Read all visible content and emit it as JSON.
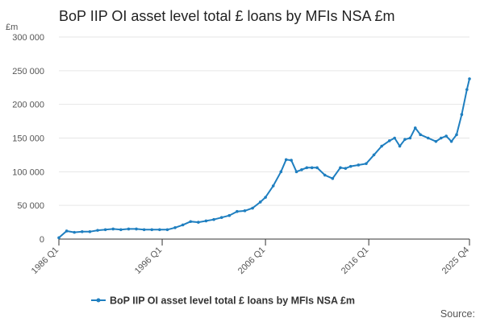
{
  "colors": {
    "series": "#1f7fc0",
    "grid": "#e6e6e6",
    "axis": "#333333"
  },
  "chart_data": {
    "type": "line",
    "title": "BoP IIP OI asset level total £ loans by MFIs NSA £m",
    "unit_label": "£m",
    "ylim": [
      0,
      300000
    ],
    "yticks": [
      {
        "value": 0,
        "label": "0"
      },
      {
        "value": 50000,
        "label": "50 000"
      },
      {
        "value": 100000,
        "label": "100 000"
      },
      {
        "value": 150000,
        "label": "150 000"
      },
      {
        "value": 200000,
        "label": "200 000"
      },
      {
        "value": 250000,
        "label": "250 000"
      },
      {
        "value": 300000,
        "label": "300 000"
      }
    ],
    "xticks": [
      {
        "value": "1986 Q1",
        "label": "1986 Q1"
      },
      {
        "value": "1996 Q1",
        "label": "1996 Q1"
      },
      {
        "value": "2006 Q1",
        "label": "2006 Q1"
      },
      {
        "value": "2016 Q1",
        "label": "2016 Q1"
      },
      {
        "value": "2025 Q4",
        "label": "2025 Q4"
      }
    ],
    "grid": true,
    "legend_position": "bottom",
    "series": [
      {
        "name": "BoP IIP OI asset level total £ loans by MFIs NSA £m",
        "x": [
          "1986 Q1",
          "1986 Q4",
          "1987 Q3",
          "1988 Q2",
          "1989 Q1",
          "1989 Q4",
          "1990 Q3",
          "1991 Q2",
          "1992 Q1",
          "1992 Q4",
          "1993 Q3",
          "1994 Q2",
          "1995 Q1",
          "1995 Q4",
          "1996 Q3",
          "1997 Q2",
          "1998 Q1",
          "1998 Q4",
          "1999 Q3",
          "2000 Q2",
          "2001 Q1",
          "2001 Q4",
          "2002 Q3",
          "2003 Q2",
          "2004 Q1",
          "2004 Q4",
          "2005 Q3",
          "2006 Q1",
          "2006 Q4",
          "2007 Q3",
          "2008 Q1",
          "2008 Q3",
          "2009 Q1",
          "2009 Q3",
          "2010 Q1",
          "2010 Q3",
          "2011 Q1",
          "2011 Q4",
          "2012 Q3",
          "2013 Q2",
          "2013 Q4",
          "2014 Q2",
          "2015 Q1",
          "2015 Q4",
          "2016 Q3",
          "2017 Q2",
          "2018 Q1",
          "2018 Q3",
          "2019 Q1",
          "2019 Q3",
          "2020 Q1",
          "2020 Q3",
          "2021 Q1",
          "2021 Q4",
          "2022 Q3",
          "2023 Q1",
          "2023 Q3",
          "2024 Q1",
          "2024 Q3",
          "2025 Q1",
          "2025 Q3",
          "2025 Q4"
        ],
        "values": [
          2000,
          12000,
          10000,
          11000,
          11000,
          13000,
          14000,
          15000,
          14000,
          15000,
          15000,
          14000,
          14000,
          14000,
          14000,
          17000,
          21000,
          26000,
          25000,
          27000,
          29000,
          32000,
          35000,
          41000,
          42000,
          46000,
          55000,
          62000,
          79000,
          100000,
          118000,
          117000,
          100000,
          103000,
          106000,
          106000,
          106000,
          95000,
          90000,
          106000,
          105000,
          108000,
          110000,
          112000,
          125000,
          138000,
          146000,
          150000,
          138000,
          148000,
          150000,
          165000,
          155000,
          150000,
          145000,
          150000,
          153000,
          145000,
          155000,
          185000,
          222000,
          238000
        ]
      }
    ]
  },
  "legend": {
    "label": "BoP IIP OI asset level total £ loans by MFIs NSA £m"
  },
  "source": {
    "label": "Source:"
  }
}
